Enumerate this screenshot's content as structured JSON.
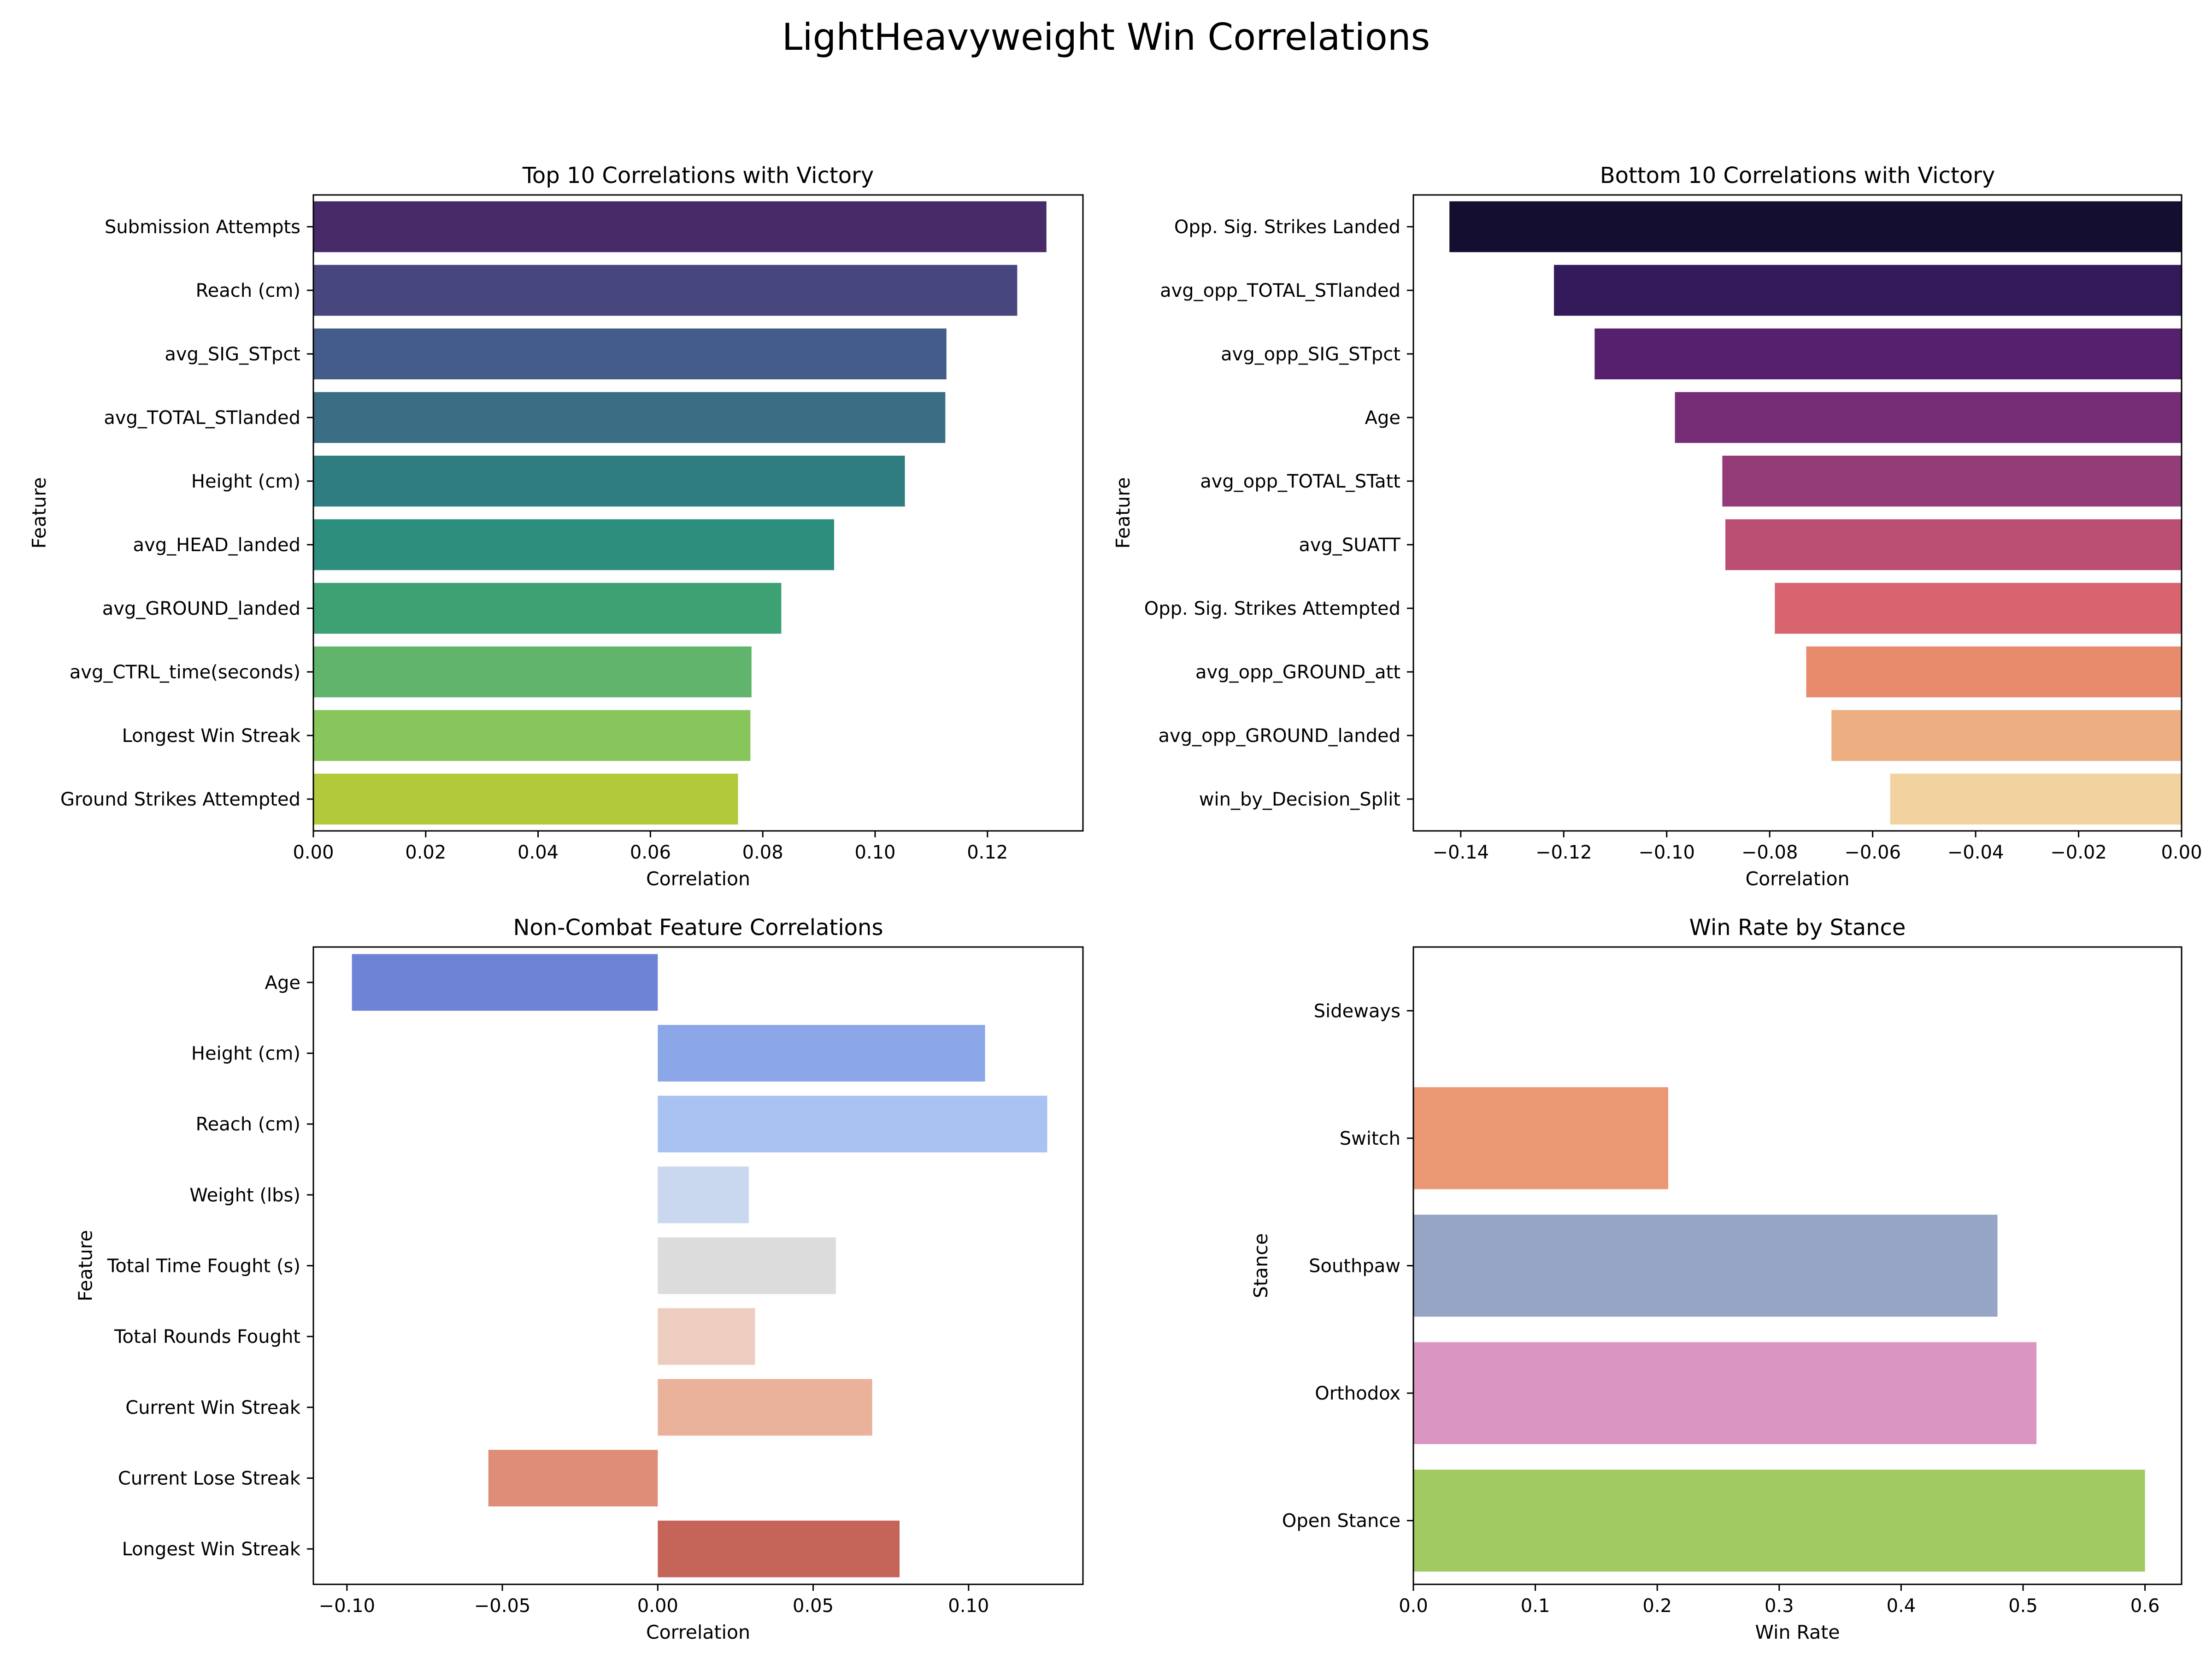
{
  "figure": {
    "title": "LightHeavyweight Win Correlations"
  },
  "chart_data": [
    {
      "type": "bar",
      "orientation": "horizontal",
      "title": "Top 10 Correlations with Victory",
      "xlabel": "Correlation",
      "ylabel": "Feature",
      "xlim": [
        0,
        0.137
      ],
      "xticks": [
        0.0,
        0.02,
        0.04,
        0.06,
        0.08,
        0.1,
        0.12
      ],
      "xtick_labels": [
        "0.00",
        "0.02",
        "0.04",
        "0.06",
        "0.08",
        "0.10",
        "0.12"
      ],
      "categories": [
        "Submission Attempts",
        "Reach (cm)",
        "avg_SIG_STpct",
        "avg_TOTAL_STlanded",
        "Height (cm)",
        "avg_HEAD_landed",
        "avg_GROUND_landed",
        "avg_CTRL_time(seconds)",
        "Longest Win Streak",
        "Ground Strikes Attempted"
      ],
      "values": [
        0.1305,
        0.1253,
        0.1127,
        0.1125,
        0.1053,
        0.0927,
        0.0833,
        0.078,
        0.0778,
        0.0756
      ],
      "palette": "viridis",
      "colors": [
        "#482A68",
        "#48467E",
        "#435C89",
        "#3A6E84",
        "#2F7D80",
        "#2D8E7D",
        "#3DA174",
        "#60B46B",
        "#88C55A",
        "#B2C93C"
      ],
      "grid": false
    },
    {
      "type": "bar",
      "orientation": "horizontal",
      "title": "Bottom 10 Correlations with Victory",
      "xlabel": "Correlation",
      "ylabel": "Feature",
      "xlim": [
        -0.1492,
        0
      ],
      "xticks": [
        -0.14,
        -0.12,
        -0.1,
        -0.08,
        -0.06,
        -0.04,
        -0.02,
        0.0
      ],
      "xtick_labels": [
        "−0.14",
        "−0.12",
        "−0.10",
        "−0.08",
        "−0.06",
        "−0.04",
        "−0.02",
        "0.00"
      ],
      "categories": [
        "Opp. Sig. Strikes Landed",
        "avg_opp_TOTAL_STlanded",
        "avg_opp_SIG_STpct",
        "Age",
        "avg_opp_TOTAL_STatt",
        "avg_SUATT",
        "Opp. Sig. Strikes Attempted",
        "avg_opp_GROUND_att",
        "avg_opp_GROUND_landed",
        "win_by_Decision_Split"
      ],
      "values": [
        -0.1422,
        -0.1219,
        -0.114,
        -0.0984,
        -0.0892,
        -0.0886,
        -0.079,
        -0.0729,
        -0.068,
        -0.0566
      ],
      "palette": "magma",
      "colors": [
        "#140F30",
        "#331A5B",
        "#56206F",
        "#762D75",
        "#943C77",
        "#BA4E73",
        "#D7646E",
        "#E88A6C",
        "#EDAF81",
        "#F2D29E"
      ],
      "grid": false
    },
    {
      "type": "bar",
      "orientation": "horizontal",
      "title": "Non-Combat Feature Correlations",
      "xlabel": "Correlation",
      "ylabel": "Feature",
      "xlim": [
        -0.1108,
        0.1368
      ],
      "xticks": [
        -0.1,
        -0.05,
        0.0,
        0.05,
        0.1
      ],
      "xtick_labels": [
        "−0.10",
        "−0.05",
        "0.00",
        "0.05",
        "0.10"
      ],
      "categories": [
        "Age",
        "Height (cm)",
        "Reach (cm)",
        "Weight (lbs)",
        "Total Time Fought (s)",
        "Total Rounds Fought",
        "Current Win Streak",
        "Current Lose Streak",
        "Longest Win Streak"
      ],
      "values": [
        -0.0984,
        0.1053,
        0.1253,
        0.0293,
        0.0573,
        0.0313,
        0.069,
        -0.0545,
        0.0778
      ],
      "palette": "coolwarm",
      "colors": [
        "#6D83D5",
        "#8CA7E8",
        "#A9C2F2",
        "#C9D7EF",
        "#DCDCDC",
        "#EDCDC0",
        "#EAB29A",
        "#DE8E78",
        "#C56458"
      ],
      "grid": false
    },
    {
      "type": "bar",
      "orientation": "horizontal",
      "title": "Win Rate by Stance",
      "xlabel": "Win Rate",
      "ylabel": "Stance",
      "xlim": [
        0,
        0.63
      ],
      "xticks": [
        0.0,
        0.1,
        0.2,
        0.3,
        0.4,
        0.5,
        0.6
      ],
      "xtick_labels": [
        "0.0",
        "0.1",
        "0.2",
        "0.3",
        "0.4",
        "0.5",
        "0.6"
      ],
      "categories": [
        "Sideways",
        "Switch",
        "Southpaw",
        "Orthodox",
        "Open Stance"
      ],
      "values": [
        0.0,
        0.209,
        0.479,
        0.511,
        0.6
      ],
      "palette": "Set2",
      "colors": [
        "#66C2A5",
        "#EB9874",
        "#96A5C5",
        "#DB95C2",
        "#A2CA62"
      ],
      "grid": false
    }
  ]
}
